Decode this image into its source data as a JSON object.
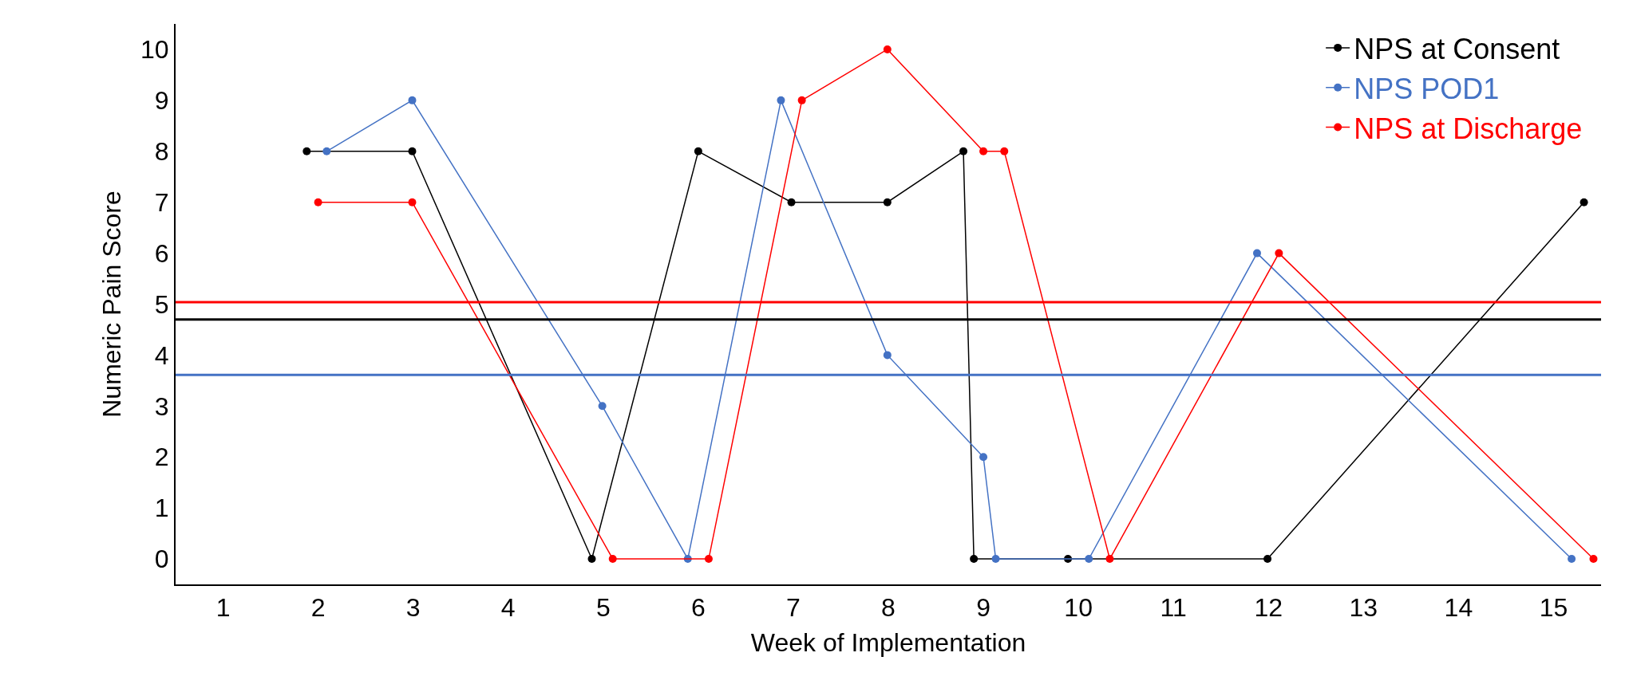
{
  "chart_data": {
    "type": "line",
    "xlabel": "Week of Implementation",
    "ylabel": "Numeric Pain Score",
    "xlim": [
      0.5,
      15.5
    ],
    "xticks": [
      1,
      2,
      3,
      4,
      5,
      6,
      7,
      8,
      9,
      10,
      11,
      12,
      13,
      14,
      15
    ],
    "ylim": [
      -0.5,
      10.5
    ],
    "yticks": [
      0,
      1,
      2,
      3,
      4,
      5,
      6,
      7,
      8,
      9,
      10
    ],
    "legend": "top right",
    "marker": "circle",
    "line_style": "solid",
    "series": [
      {
        "name": "NPS at Consent",
        "color": "#000000",
        "x": [
          1.88,
          2.99,
          4.88,
          6.0,
          6.98,
          7.99,
          8.79,
          8.9,
          9.89,
          11.99,
          15.32
        ],
        "values": [
          8,
          8,
          0,
          8,
          7,
          7,
          8,
          0,
          0,
          0,
          7
        ]
      },
      {
        "name": "NPS POD1",
        "color": "#4472c4",
        "x": [
          2.09,
          2.99,
          4.99,
          5.89,
          6.87,
          7.99,
          9.0,
          9.13,
          10.11,
          11.88,
          15.19
        ],
        "values": [
          8,
          9,
          3,
          0,
          9,
          4,
          2,
          0,
          0,
          6,
          0
        ]
      },
      {
        "name": "NPS at Discharge",
        "color": "#ff0000",
        "x": [
          2.0,
          2.99,
          5.1,
          6.11,
          7.09,
          7.99,
          9.0,
          9.22,
          10.33,
          12.11,
          15.42
        ],
        "values": [
          7,
          7,
          0,
          0,
          9,
          10,
          8,
          8,
          0,
          6,
          0
        ]
      }
    ],
    "ref_lines": [
      {
        "axis": "y",
        "value": 5.04,
        "color": "#ff0000"
      },
      {
        "axis": "y",
        "value": 4.7,
        "color": "#000000"
      },
      {
        "axis": "y",
        "value": 3.61,
        "color": "#4472c4"
      }
    ]
  }
}
